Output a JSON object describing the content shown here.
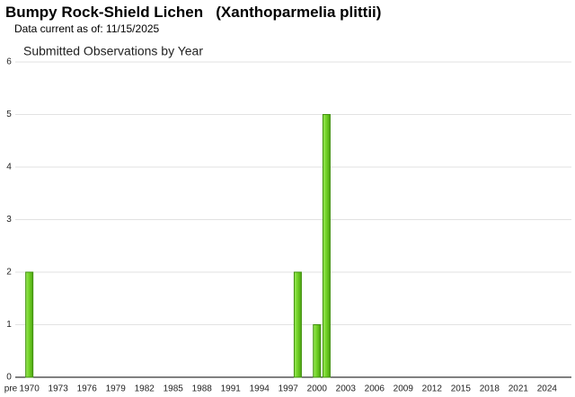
{
  "header": {
    "title": "Bumpy Rock-Shield Lichen   (Xanthoparmelia plittii)",
    "subtitle": "Data current as of: 11/15/2025"
  },
  "chart_data": {
    "type": "bar",
    "title": "Submitted Observations by Year",
    "categories": [
      "pre",
      "1970",
      null,
      null,
      "1973",
      null,
      null,
      "1976",
      null,
      null,
      "1979",
      null,
      null,
      "1982",
      null,
      null,
      "1985",
      null,
      null,
      "1988",
      null,
      null,
      "1991",
      null,
      null,
      "1994",
      null,
      null,
      "1997",
      null,
      null,
      "2000",
      null,
      null,
      "2003",
      null,
      null,
      "2006",
      null,
      null,
      "2009",
      null,
      null,
      "2012",
      null,
      null,
      "2015",
      null,
      null,
      "2018",
      null,
      null,
      "2021",
      null,
      null,
      "2024",
      null
    ],
    "values": [
      0,
      2,
      0,
      0,
      0,
      0,
      0,
      0,
      0,
      0,
      0,
      0,
      0,
      0,
      0,
      0,
      0,
      0,
      0,
      0,
      0,
      0,
      0,
      0,
      0,
      0,
      0,
      0,
      0,
      2,
      0,
      1,
      5,
      0,
      0,
      0,
      0,
      0,
      0,
      0,
      0,
      0,
      0,
      0,
      0,
      0,
      0,
      0,
      0,
      0,
      0,
      0,
      0,
      0,
      0,
      0,
      0
    ],
    "color": "#6fd024",
    "ylim": [
      0,
      6
    ],
    "yticks": [
      0,
      1,
      2,
      3,
      4,
      5,
      6
    ],
    "grid": true
  }
}
